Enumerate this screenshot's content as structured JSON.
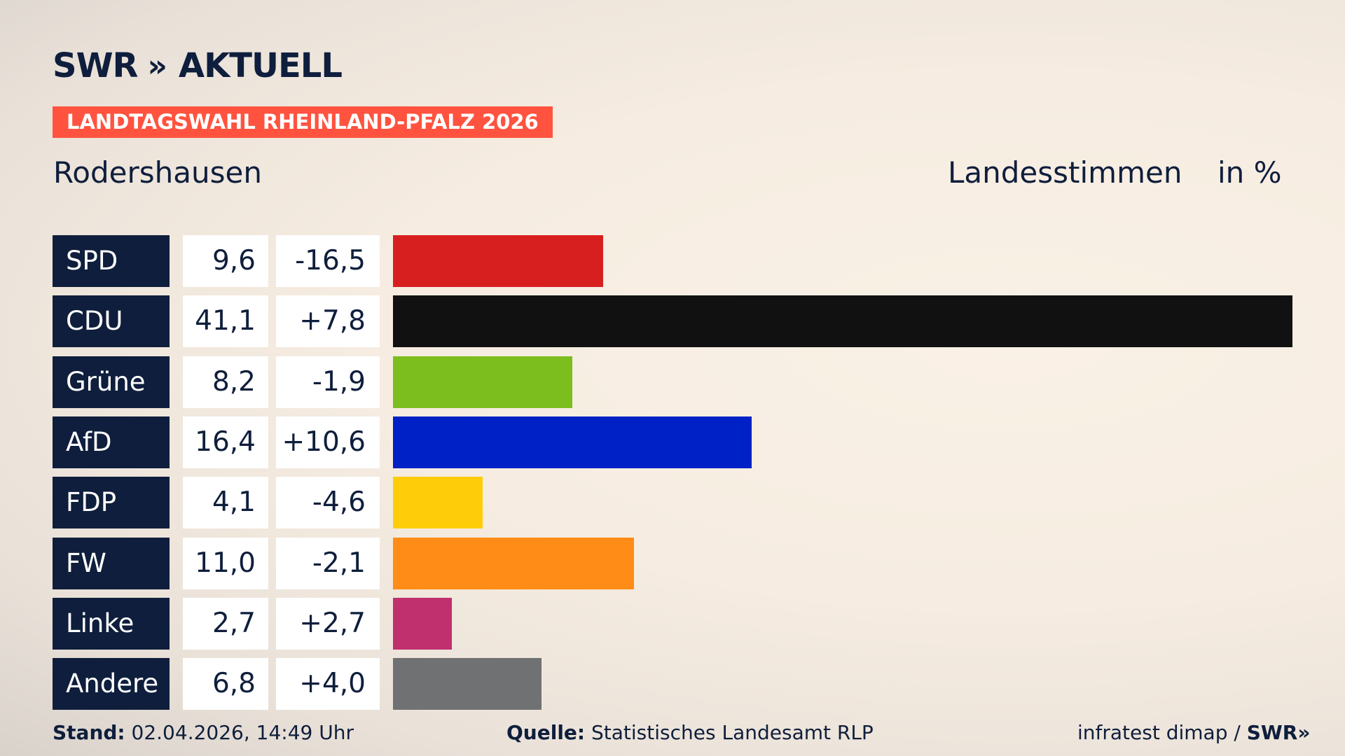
{
  "brand": {
    "logo_left": "SWR",
    "logo_chevrons": "»",
    "logo_right": "AKTUELL"
  },
  "banner": {
    "label": "LANDTAGSWAHL RHEINLAND-PFALZ 2026",
    "color": "#ff5340"
  },
  "header": {
    "place": "Rodershausen",
    "metric": "Landesstimmen",
    "unit": "in %"
  },
  "chart_data": {
    "type": "bar",
    "categories": [
      "SPD",
      "CDU",
      "Grüne",
      "AfD",
      "FDP",
      "FW",
      "Linke",
      "Andere"
    ],
    "values": [
      9.6,
      41.1,
      8.2,
      16.4,
      4.1,
      11.0,
      2.7,
      6.8
    ],
    "value_labels": [
      "9,6",
      "41,1",
      "8,2",
      "16,4",
      "4,1",
      "11,0",
      "2,7",
      "6,8"
    ],
    "changes": [
      -16.5,
      7.8,
      -1.9,
      10.6,
      -4.6,
      -2.1,
      2.7,
      4.0
    ],
    "change_labels": [
      "-16,5",
      "+7,8",
      "-1,9",
      "+10,6",
      "-4,6",
      "-2,1",
      "+2,7",
      "+4,0"
    ],
    "colors": [
      "#d81f1f",
      "#111111",
      "#7cbe1e",
      "#0021c6",
      "#ffcc0a",
      "#ff8c16",
      "#c0306e",
      "#707172"
    ],
    "orientation": "horizontal",
    "xlim": [
      0,
      41.1
    ]
  },
  "footer": {
    "stand_label": "Stand:",
    "stand_value": "02.04.2026, 14:49 Uhr",
    "source_label": "Quelle:",
    "source_value": "Statistisches Landesamt RLP",
    "credit": "infratest dimap /",
    "credit_brand": "SWR»"
  }
}
